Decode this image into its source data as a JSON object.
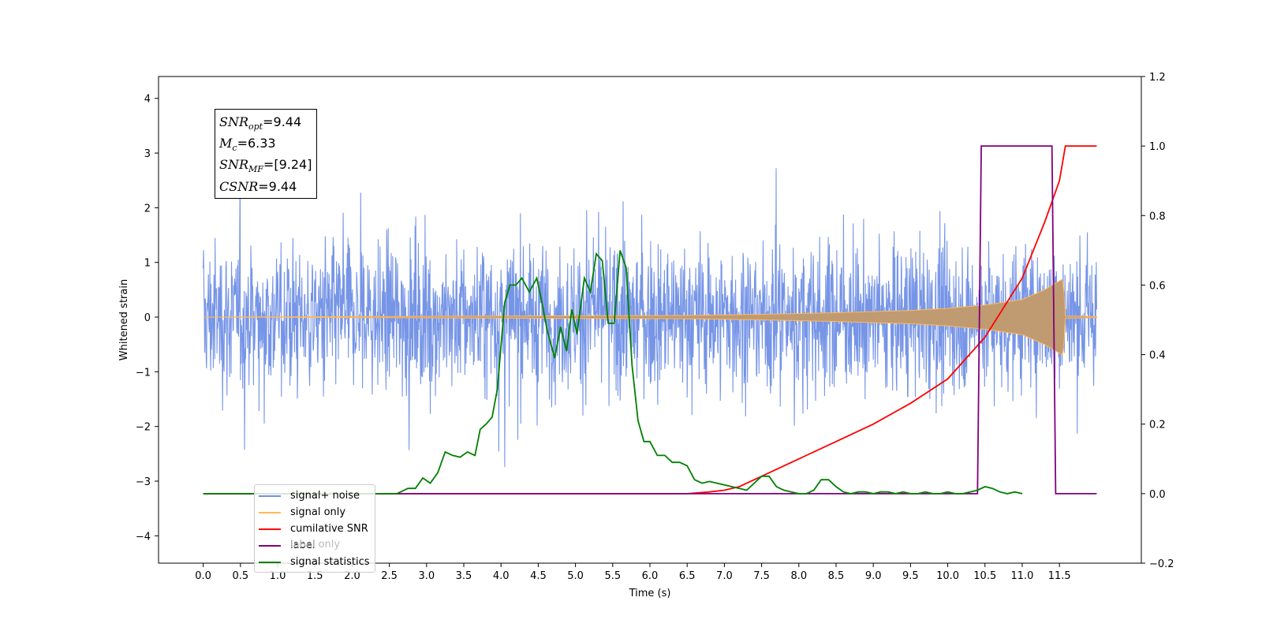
{
  "chart_data": {
    "type": "line",
    "xlabel": "Time (s)",
    "ylabel": "Whitened strain",
    "x_ticks": [
      "0.0",
      "0.5",
      "1.0",
      "1.5",
      "2.0",
      "2.5",
      "3.0",
      "3.5",
      "4.0",
      "4.5",
      "5.0",
      "5.5",
      "6.0",
      "6.5",
      "7.0",
      "7.5",
      "8.0",
      "8.5",
      "9.0",
      "9.5",
      "10.0",
      "10.5",
      "11.0",
      "11.5"
    ],
    "y_left_ticks": [
      "4",
      "3",
      "2",
      "1",
      "0",
      "−1",
      "−2",
      "−3",
      "−4"
    ],
    "y_right_ticks": [
      "1.2",
      "1.0",
      "0.8",
      "0.6",
      "0.4",
      "0.2",
      "0.0",
      "−0.2"
    ],
    "xlim": [
      -0.6,
      12.6
    ],
    "ylim_left": [
      -4.5,
      4.4
    ],
    "ylim_right": [
      -0.2,
      1.2
    ],
    "annotations": {
      "snr_opt": "=9.44",
      "mc": "=6.33",
      "snr_mf": "=[9.24]",
      "csnr": "=9.44"
    },
    "series": [
      {
        "name": "signal+ noise",
        "color": "#6f8fe6",
        "axis": "left",
        "description_values": "whitened noise, amplitude ~ ±2.5 with spikes up to 4",
        "x_range": [
          0.0,
          12.0
        ]
      },
      {
        "name": "signal only",
        "color": "#ffb85c",
        "axis": "left",
        "envelope": [
          [
            0.0,
            0.0
          ],
          [
            6.5,
            0.03
          ],
          [
            7.5,
            0.05
          ],
          [
            8.5,
            0.08
          ],
          [
            9.5,
            0.12
          ],
          [
            10.0,
            0.16
          ],
          [
            10.5,
            0.22
          ],
          [
            11.0,
            0.32
          ],
          [
            11.3,
            0.5
          ],
          [
            11.55,
            0.7
          ],
          [
            11.58,
            0.02
          ],
          [
            12.0,
            0.01
          ]
        ]
      },
      {
        "name": "cumilative SNR",
        "color": "#ff0000",
        "axis": "right",
        "points": [
          [
            0.0,
            0.0
          ],
          [
            6.5,
            0.0
          ],
          [
            6.8,
            0.005
          ],
          [
            7.0,
            0.01
          ],
          [
            7.2,
            0.02
          ],
          [
            7.5,
            0.05
          ],
          [
            8.0,
            0.1
          ],
          [
            8.5,
            0.15
          ],
          [
            9.0,
            0.2
          ],
          [
            9.5,
            0.26
          ],
          [
            10.0,
            0.33
          ],
          [
            10.5,
            0.45
          ],
          [
            11.0,
            0.62
          ],
          [
            11.3,
            0.78
          ],
          [
            11.5,
            0.9
          ],
          [
            11.58,
            1.0
          ],
          [
            12.0,
            1.0
          ]
        ]
      },
      {
        "name": "label only",
        "color": "#800080",
        "axis": "right",
        "points": [
          [
            0.0,
            0.0
          ],
          [
            10.4,
            0.0
          ],
          [
            10.45,
            1.0
          ],
          [
            11.4,
            1.0
          ],
          [
            11.45,
            0.0
          ],
          [
            12.0,
            0.0
          ]
        ]
      },
      {
        "name": "signal statistics",
        "color": "#008000",
        "axis": "right",
        "points": [
          [
            0.0,
            0.0
          ],
          [
            2.6,
            0.0
          ],
          [
            2.75,
            0.015
          ],
          [
            2.85,
            0.015
          ],
          [
            2.95,
            0.045
          ],
          [
            3.05,
            0.03
          ],
          [
            3.15,
            0.06
          ],
          [
            3.25,
            0.12
          ],
          [
            3.35,
            0.11
          ],
          [
            3.45,
            0.105
          ],
          [
            3.55,
            0.12
          ],
          [
            3.65,
            0.11
          ],
          [
            3.72,
            0.185
          ],
          [
            3.8,
            0.2
          ],
          [
            3.88,
            0.22
          ],
          [
            3.95,
            0.3
          ],
          [
            4.05,
            0.55
          ],
          [
            4.12,
            0.6
          ],
          [
            4.2,
            0.6
          ],
          [
            4.28,
            0.62
          ],
          [
            4.38,
            0.58
          ],
          [
            4.48,
            0.62
          ],
          [
            4.55,
            0.55
          ],
          [
            4.62,
            0.47
          ],
          [
            4.72,
            0.39
          ],
          [
            4.8,
            0.48
          ],
          [
            4.88,
            0.41
          ],
          [
            4.95,
            0.53
          ],
          [
            5.02,
            0.46
          ],
          [
            5.12,
            0.62
          ],
          [
            5.2,
            0.58
          ],
          [
            5.28,
            0.69
          ],
          [
            5.36,
            0.67
          ],
          [
            5.44,
            0.49
          ],
          [
            5.52,
            0.49
          ],
          [
            5.6,
            0.7
          ],
          [
            5.68,
            0.65
          ],
          [
            5.76,
            0.37
          ],
          [
            5.84,
            0.21
          ],
          [
            5.92,
            0.15
          ],
          [
            6.0,
            0.15
          ],
          [
            6.1,
            0.11
          ],
          [
            6.2,
            0.11
          ],
          [
            6.3,
            0.09
          ],
          [
            6.4,
            0.09
          ],
          [
            6.5,
            0.08
          ],
          [
            6.6,
            0.04
          ],
          [
            6.7,
            0.03
          ],
          [
            6.8,
            0.035
          ],
          [
            6.9,
            0.03
          ],
          [
            7.0,
            0.025
          ],
          [
            7.1,
            0.02
          ],
          [
            7.2,
            0.015
          ],
          [
            7.3,
            0.01
          ],
          [
            7.4,
            0.03
          ],
          [
            7.5,
            0.05
          ],
          [
            7.6,
            0.05
          ],
          [
            7.7,
            0.02
          ],
          [
            7.8,
            0.01
          ],
          [
            7.9,
            0.005
          ],
          [
            8.0,
            0.0
          ],
          [
            8.1,
            0.0
          ],
          [
            8.2,
            0.01
          ],
          [
            8.3,
            0.04
          ],
          [
            8.4,
            0.04
          ],
          [
            8.5,
            0.02
          ],
          [
            8.6,
            0.005
          ],
          [
            8.7,
            0.0
          ],
          [
            8.8,
            0.005
          ],
          [
            8.9,
            0.005
          ],
          [
            9.0,
            0.0
          ],
          [
            9.1,
            0.005
          ],
          [
            9.2,
            0.005
          ],
          [
            9.3,
            0.0
          ],
          [
            9.4,
            0.005
          ],
          [
            9.5,
            0.0
          ],
          [
            9.6,
            0.0
          ],
          [
            9.7,
            0.005
          ],
          [
            9.8,
            0.0
          ],
          [
            9.9,
            0.0
          ],
          [
            10.0,
            0.005
          ],
          [
            10.1,
            0.0
          ],
          [
            10.2,
            0.0
          ],
          [
            10.3,
            0.005
          ],
          [
            10.4,
            0.01
          ],
          [
            10.5,
            0.02
          ],
          [
            10.6,
            0.015
          ],
          [
            10.7,
            0.005
          ],
          [
            10.8,
            0.0
          ],
          [
            10.9,
            0.005
          ],
          [
            11.0,
            0.0
          ]
        ]
      }
    ]
  },
  "legend": {
    "items": [
      {
        "label": "signal+ noise",
        "color": "#6f8fe6"
      },
      {
        "label": "signal only",
        "color": "#ffb85c"
      },
      {
        "label": "cumilative SNR",
        "color": "#ff0000"
      },
      {
        "label": "label",
        "color": "#800080"
      },
      {
        "label": "signal statistics",
        "color": "#008000"
      }
    ],
    "ghost_text": "label only"
  }
}
